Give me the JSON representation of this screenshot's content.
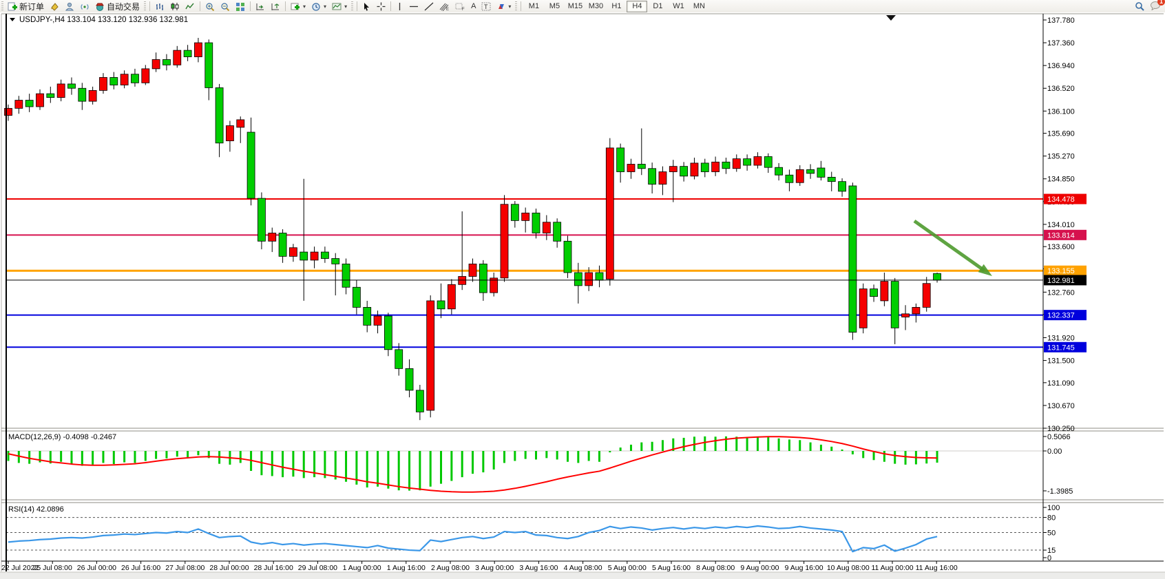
{
  "toolbar": {
    "new_order_label": "新订单",
    "autotrade_label": "自动交易",
    "text_tool_a": "A",
    "text_tool_t": "T",
    "timeframes": [
      "M1",
      "M5",
      "M15",
      "M30",
      "H1",
      "H4",
      "D1",
      "W1",
      "MN"
    ],
    "active_timeframe": "H4",
    "chat_badge": "1"
  },
  "chart": {
    "symbol": "USDJPY-,H4",
    "ohlc_text": "133.104 133.120 132.936 132.981",
    "open": "133.104",
    "high": "133.120",
    "low": "132.936",
    "close": "132.981"
  },
  "colors": {
    "up_candle": "#f50000",
    "down_candle": "#00ce00",
    "candle_stroke": "#000000",
    "macd_hist": "#00c800",
    "macd_signal": "#ff0000",
    "rsi_line": "#3a97e8",
    "arrow": "#4e9a2e",
    "line_red": "#ee0000",
    "line_crimson": "#d6114d",
    "line_orange": "#ffa200",
    "line_black": "#000000",
    "line_blue": "#0000dd"
  },
  "chart_data": {
    "type": "candlestick",
    "title": "USDJPY-,H4 133.104 133.120 132.936 132.981",
    "price_axis_ticks": [
      137.78,
      137.36,
      136.94,
      136.52,
      136.1,
      135.69,
      135.27,
      134.85,
      134.43,
      134.01,
      133.6,
      133.19,
      132.76,
      132.35,
      131.92,
      131.5,
      131.09,
      130.67,
      130.25
    ],
    "price_range": [
      130.25,
      137.78
    ],
    "time_labels": [
      "22 Jul 2022",
      "25 Jul 08:00",
      "26 Jul 00:00",
      "26 Jul 16:00",
      "27 Jul 08:00",
      "28 Jul 00:00",
      "28 Jul 16:00",
      "29 Jul 08:00",
      "1 Aug 00:00",
      "1 Aug 16:00",
      "2 Aug 08:00",
      "3 Aug 00:00",
      "3 Aug 16:00",
      "4 Aug 08:00",
      "5 Aug 00:00",
      "5 Aug 16:00",
      "8 Aug 08:00",
      "9 Aug 00:00",
      "9 Aug 16:00",
      "10 Aug 08:00",
      "11 Aug 00:00",
      "11 Aug 16:00"
    ],
    "hlines": [
      {
        "price": 134.478,
        "label": "134.478",
        "color": "#ee0000",
        "width": 2
      },
      {
        "price": 133.814,
        "label": "133.814",
        "color": "#d6114d",
        "width": 2
      },
      {
        "price": 133.155,
        "label": "133.155",
        "color": "#ffa200",
        "width": 3
      },
      {
        "price": 132.981,
        "label": "132.981",
        "color": "#000000",
        "width": 1
      },
      {
        "price": 132.337,
        "label": "132.337",
        "color": "#0000dd",
        "width": 2
      },
      {
        "price": 131.745,
        "label": "131.745",
        "color": "#0000dd",
        "width": 2
      }
    ],
    "arrow_annotation": {
      "x1_index": 86,
      "price1": 133.7,
      "x2_index": 93,
      "price2": 132.99,
      "color": "#4e9a2e"
    },
    "candles": [
      [
        136.02,
        136.22,
        135.92,
        136.15
      ],
      [
        136.15,
        136.38,
        136.05,
        136.3
      ],
      [
        136.3,
        136.42,
        136.08,
        136.18
      ],
      [
        136.18,
        136.5,
        136.12,
        136.42
      ],
      [
        136.42,
        136.55,
        136.25,
        136.35
      ],
      [
        136.35,
        136.68,
        136.28,
        136.6
      ],
      [
        136.6,
        136.72,
        136.4,
        136.52
      ],
      [
        136.52,
        136.62,
        136.12,
        136.28
      ],
      [
        136.28,
        136.55,
        136.22,
        136.48
      ],
      [
        136.48,
        136.8,
        136.42,
        136.72
      ],
      [
        136.72,
        136.82,
        136.5,
        136.58
      ],
      [
        136.58,
        136.85,
        136.52,
        136.78
      ],
      [
        136.78,
        136.88,
        136.55,
        136.62
      ],
      [
        136.62,
        136.95,
        136.58,
        136.88
      ],
      [
        136.88,
        137.18,
        136.82,
        137.05
      ],
      [
        137.05,
        137.15,
        136.85,
        136.95
      ],
      [
        136.95,
        137.3,
        136.9,
        137.22
      ],
      [
        137.22,
        137.32,
        137.02,
        137.1
      ],
      [
        137.1,
        137.45,
        137.0,
        137.36
      ],
      [
        137.36,
        137.42,
        136.3,
        136.53
      ],
      [
        136.53,
        136.6,
        135.25,
        135.51
      ],
      [
        135.55,
        135.92,
        135.35,
        135.83
      ],
      [
        135.8,
        136.0,
        135.51,
        135.94
      ],
      [
        135.71,
        135.98,
        134.36,
        134.49
      ],
      [
        134.49,
        134.6,
        133.55,
        133.7
      ],
      [
        133.7,
        133.95,
        133.5,
        133.85
      ],
      [
        133.85,
        133.92,
        133.3,
        133.42
      ],
      [
        133.42,
        133.65,
        133.32,
        133.58
      ],
      [
        133.5,
        134.85,
        132.6,
        133.35
      ],
      [
        133.35,
        133.6,
        133.2,
        133.5
      ],
      [
        133.5,
        133.6,
        133.3,
        133.38
      ],
      [
        133.38,
        133.48,
        132.7,
        133.28
      ],
      [
        133.28,
        133.38,
        132.72,
        132.85
      ],
      [
        132.85,
        132.98,
        132.35,
        132.48
      ],
      [
        132.48,
        132.6,
        132.02,
        132.15
      ],
      [
        132.15,
        132.42,
        132.0,
        132.32
      ],
      [
        132.32,
        132.38,
        131.58,
        131.7
      ],
      [
        131.7,
        131.82,
        131.22,
        131.35
      ],
      [
        131.35,
        131.52,
        130.82,
        130.95
      ],
      [
        130.95,
        131.05,
        130.4,
        130.55
      ],
      [
        130.58,
        132.7,
        130.45,
        132.6
      ],
      [
        132.6,
        132.92,
        132.28,
        132.45
      ],
      [
        132.45,
        133.0,
        132.35,
        132.9
      ],
      [
        132.9,
        134.25,
        132.8,
        133.05
      ],
      [
        133.05,
        133.38,
        132.95,
        133.28
      ],
      [
        133.28,
        133.35,
        132.6,
        132.75
      ],
      [
        132.75,
        133.12,
        132.68,
        133.02
      ],
      [
        133.02,
        134.55,
        132.95,
        134.38
      ],
      [
        134.38,
        134.44,
        133.95,
        134.08
      ],
      [
        134.08,
        134.32,
        133.86,
        134.22
      ],
      [
        134.22,
        134.3,
        133.75,
        133.85
      ],
      [
        133.85,
        134.18,
        133.72,
        134.05
      ],
      [
        134.05,
        134.12,
        133.58,
        133.7
      ],
      [
        133.7,
        133.8,
        133.02,
        133.12
      ],
      [
        133.12,
        133.3,
        132.55,
        132.88
      ],
      [
        132.88,
        133.22,
        132.78,
        133.12
      ],
      [
        133.12,
        133.25,
        132.85,
        132.98
      ],
      [
        133.0,
        135.6,
        132.88,
        135.42
      ],
      [
        135.42,
        135.5,
        134.78,
        134.98
      ],
      [
        134.98,
        135.22,
        134.85,
        135.12
      ],
      [
        135.12,
        135.78,
        134.92,
        135.04
      ],
      [
        135.04,
        135.15,
        134.58,
        134.75
      ],
      [
        134.75,
        135.08,
        134.55,
        134.98
      ],
      [
        134.98,
        135.2,
        134.42,
        135.08
      ],
      [
        135.08,
        135.16,
        134.8,
        134.9
      ],
      [
        134.9,
        135.24,
        134.84,
        135.14
      ],
      [
        135.14,
        135.22,
        134.88,
        134.98
      ],
      [
        134.98,
        135.26,
        134.9,
        135.16
      ],
      [
        135.16,
        135.24,
        134.94,
        135.04
      ],
      [
        135.04,
        135.3,
        134.98,
        135.22
      ],
      [
        135.22,
        135.3,
        135.0,
        135.1
      ],
      [
        135.1,
        135.34,
        135.04,
        135.26
      ],
      [
        135.26,
        135.32,
        134.96,
        135.06
      ],
      [
        135.06,
        135.14,
        134.82,
        134.92
      ],
      [
        134.92,
        135.02,
        134.62,
        134.78
      ],
      [
        134.78,
        135.1,
        134.72,
        135.02
      ],
      [
        135.02,
        135.12,
        134.85,
        134.95
      ],
      [
        135.05,
        135.18,
        134.82,
        134.88
      ],
      [
        134.88,
        134.98,
        134.62,
        134.8
      ],
      [
        134.8,
        134.86,
        134.52,
        134.62
      ],
      [
        134.72,
        134.78,
        131.88,
        132.02
      ],
      [
        132.1,
        132.92,
        132.0,
        132.82
      ],
      [
        132.82,
        132.9,
        132.58,
        132.68
      ],
      [
        132.6,
        133.12,
        132.5,
        132.96
      ],
      [
        132.96,
        133.02,
        131.8,
        132.1
      ],
      [
        132.3,
        132.52,
        132.06,
        132.36
      ],
      [
        132.36,
        132.55,
        132.2,
        132.48
      ],
      [
        132.48,
        133.04,
        132.4,
        132.92
      ],
      [
        133.104,
        133.12,
        132.936,
        132.981
      ]
    ],
    "macd": {
      "label": "MACD(12,26,9)",
      "values_text": "-0.4098 -0.2467",
      "axis_ticks": [
        "0.5066",
        "0.00",
        "-1.3985"
      ],
      "axis_values": [
        0.5066,
        0,
        -1.3985
      ],
      "histogram": [
        -0.35,
        -0.42,
        -0.45,
        -0.4,
        -0.44,
        -0.38,
        -0.45,
        -0.52,
        -0.48,
        -0.42,
        -0.46,
        -0.4,
        -0.42,
        -0.35,
        -0.28,
        -0.26,
        -0.2,
        -0.22,
        -0.15,
        -0.25,
        -0.45,
        -0.48,
        -0.42,
        -0.7,
        -0.85,
        -0.88,
        -0.92,
        -0.9,
        -0.95,
        -0.92,
        -0.95,
        -1.0,
        -1.08,
        -1.18,
        -1.28,
        -1.25,
        -1.32,
        -1.38,
        -1.39,
        -1.38,
        -1.25,
        -1.15,
        -1.05,
        -0.92,
        -0.8,
        -0.75,
        -0.65,
        -0.42,
        -0.35,
        -0.28,
        -0.3,
        -0.25,
        -0.3,
        -0.38,
        -0.42,
        -0.35,
        -0.38,
        -0.05,
        0.12,
        0.22,
        0.3,
        0.32,
        0.38,
        0.44,
        0.46,
        0.5,
        0.51,
        0.5,
        0.51,
        0.5,
        0.49,
        0.5,
        0.48,
        0.44,
        0.4,
        0.38,
        0.3,
        0.22,
        0.15,
        0.05,
        -0.12,
        -0.25,
        -0.32,
        -0.38,
        -0.45,
        -0.48,
        -0.47,
        -0.44,
        -0.41
      ],
      "signal": [
        -0.1,
        -0.18,
        -0.26,
        -0.32,
        -0.38,
        -0.42,
        -0.46,
        -0.49,
        -0.5,
        -0.5,
        -0.49,
        -0.47,
        -0.45,
        -0.41,
        -0.36,
        -0.31,
        -0.27,
        -0.24,
        -0.21,
        -0.2,
        -0.21,
        -0.24,
        -0.27,
        -0.33,
        -0.41,
        -0.49,
        -0.57,
        -0.64,
        -0.71,
        -0.77,
        -0.83,
        -0.89,
        -0.95,
        -1.01,
        -1.08,
        -1.13,
        -1.19,
        -1.25,
        -1.3,
        -1.34,
        -1.38,
        -1.41,
        -1.43,
        -1.44,
        -1.44,
        -1.43,
        -1.41,
        -1.37,
        -1.31,
        -1.24,
        -1.16,
        -1.08,
        -0.99,
        -0.91,
        -0.84,
        -0.77,
        -0.71,
        -0.6,
        -0.48,
        -0.36,
        -0.25,
        -0.14,
        -0.04,
        0.06,
        0.15,
        0.23,
        0.3,
        0.36,
        0.41,
        0.45,
        0.47,
        0.49,
        0.5,
        0.5,
        0.49,
        0.47,
        0.44,
        0.39,
        0.33,
        0.26,
        0.17,
        0.07,
        -0.02,
        -0.1,
        -0.16,
        -0.2,
        -0.23,
        -0.24,
        -0.2467
      ]
    },
    "rsi": {
      "label": "RSI(14)",
      "value_text": "42.0896",
      "axis_ticks": [
        "100",
        "80",
        "50",
        "15",
        "0"
      ],
      "levels": [
        80,
        50,
        15
      ],
      "values": [
        31,
        33,
        34,
        36,
        37,
        39,
        40,
        39,
        41,
        44,
        45,
        47,
        46,
        48,
        50,
        49,
        52,
        50,
        57,
        48,
        40,
        42,
        43,
        31,
        27,
        30,
        26,
        28,
        25,
        27,
        28,
        26,
        24,
        22,
        20,
        24,
        19,
        17,
        15,
        14,
        35,
        32,
        36,
        40,
        42,
        38,
        41,
        52,
        50,
        52,
        45,
        44,
        40,
        38,
        42,
        50,
        54,
        62,
        58,
        61,
        59,
        55,
        58,
        60,
        57,
        60,
        58,
        61,
        59,
        62,
        60,
        63,
        61,
        58,
        59,
        62,
        59,
        57,
        55,
        52,
        12,
        20,
        18,
        25,
        13,
        19,
        26,
        37,
        42.09
      ]
    }
  }
}
